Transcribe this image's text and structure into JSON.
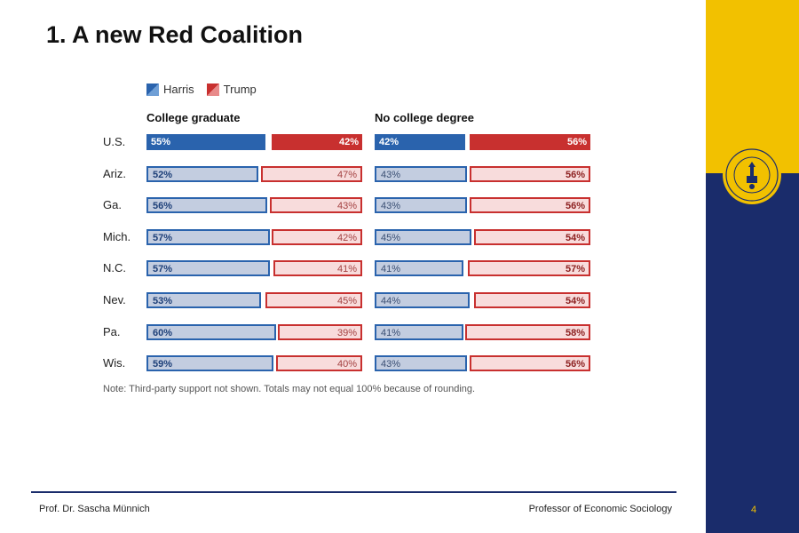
{
  "slide": {
    "title": "1. A new Red Coalition",
    "footer_left": "Prof. Dr. Sascha Münnich",
    "footer_right": "Professor of Economic Sociology",
    "page_number": "4"
  },
  "colors": {
    "harris_dark": "#2a63ad",
    "harris_light": "#c3cde0",
    "trump_dark": "#c8302f",
    "trump_light": "#f8dcdc",
    "sidebar_blue": "#1a2c6b",
    "sidebar_gold": "#f2c100"
  },
  "chart_data": {
    "type": "bar",
    "subtype": "stacked-horizontal-100",
    "legend": [
      {
        "name": "Harris",
        "color": "#2a63ad"
      },
      {
        "name": "Trump",
        "color": "#c8302f"
      }
    ],
    "legend_placement": "top-left",
    "categories": [
      "U.S.",
      "Ariz.",
      "Ga.",
      "Mich.",
      "N.C.",
      "Nev.",
      "Pa.",
      "Wis."
    ],
    "panels": [
      {
        "title": "College graduate",
        "series": [
          {
            "name": "Harris",
            "values": [
              55,
              52,
              56,
              57,
              57,
              53,
              60,
              59
            ]
          },
          {
            "name": "Trump",
            "values": [
              42,
              47,
              43,
              42,
              41,
              45,
              39,
              40
            ]
          }
        ]
      },
      {
        "title": "No college degree",
        "series": [
          {
            "name": "Harris",
            "values": [
              42,
              43,
              43,
              45,
              41,
              44,
              41,
              43
            ]
          },
          {
            "name": "Trump",
            "values": [
              56,
              56,
              56,
              54,
              57,
              54,
              58,
              56
            ]
          }
        ]
      }
    ],
    "value_suffix": "%",
    "note": "Note: Third-party support not shown. Totals may not equal 100% because of rounding."
  }
}
